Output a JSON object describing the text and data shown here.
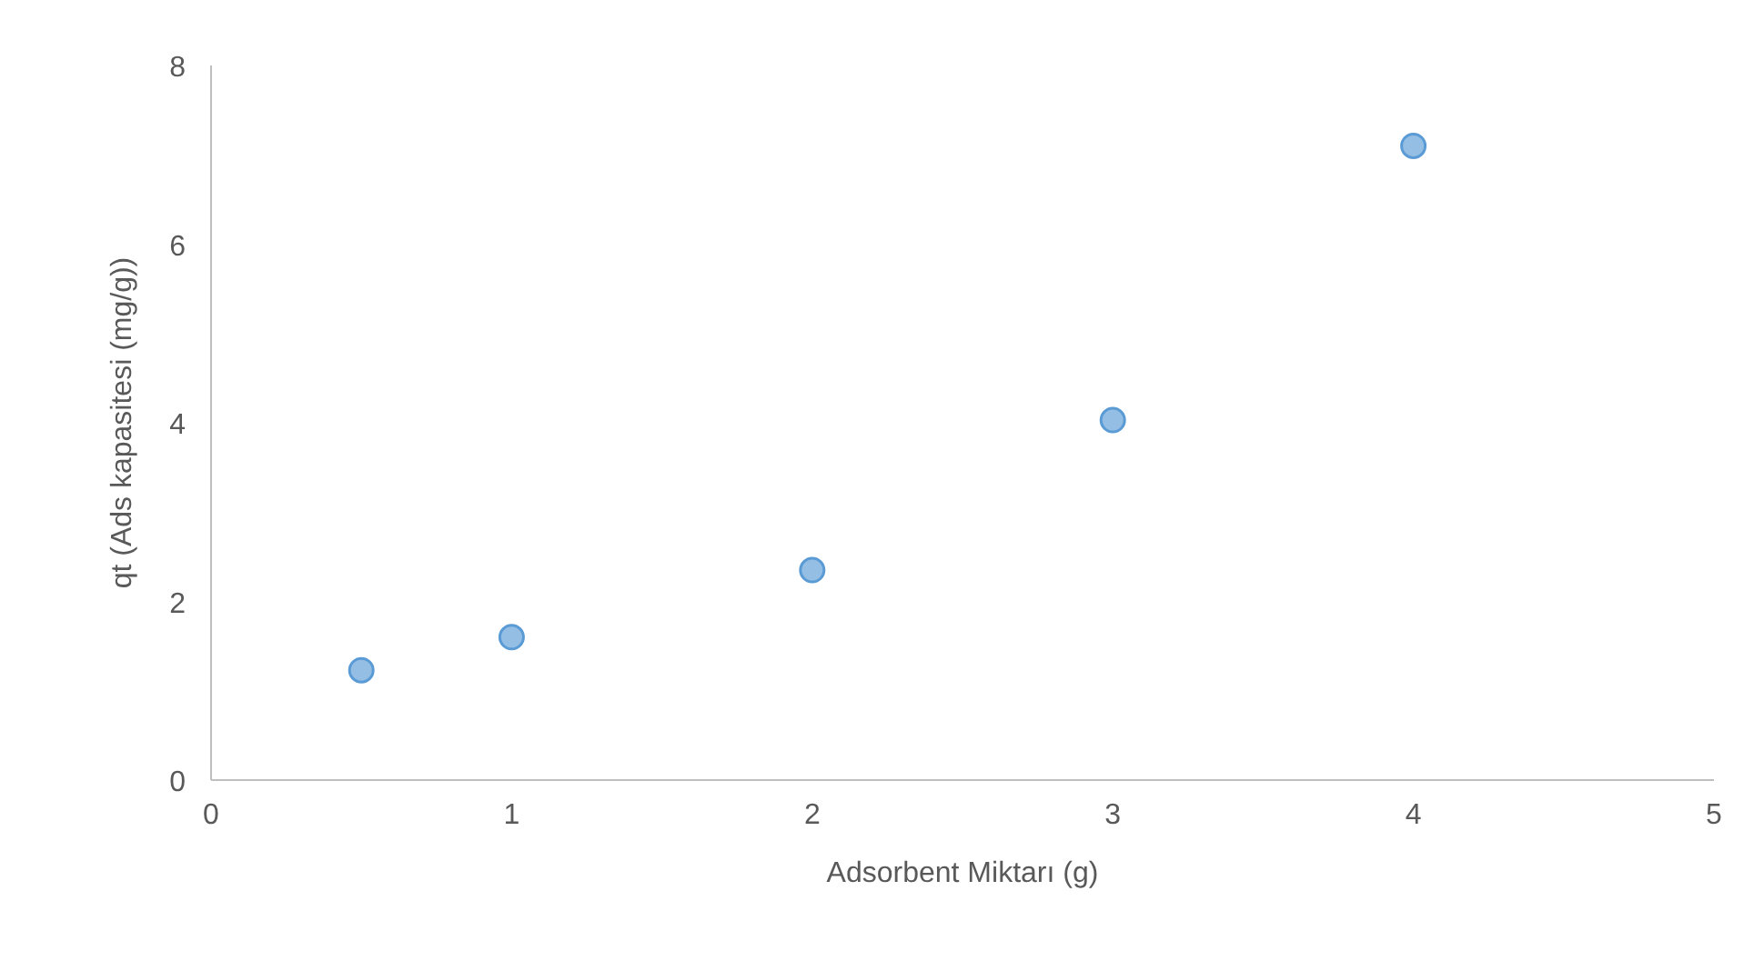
{
  "chart_data": {
    "type": "scatter",
    "xlabel": "Adsorbent Miktarı (g)",
    "ylabel": "qt (Ads kapasitesi (mg/g))",
    "x": [
      0.5,
      1,
      2,
      3,
      4
    ],
    "series": [
      {
        "color": "#5b9bd5",
        "values": [
          1.23,
          1.6,
          2.35,
          4.03,
          7.1
        ]
      }
    ],
    "xlim": [
      0,
      5
    ],
    "xticks": [
      0,
      1,
      2,
      3,
      4,
      5
    ],
    "ylim": [
      0,
      8
    ],
    "yticks": [
      0,
      2,
      4,
      6,
      8
    ],
    "grid": false,
    "marker": "circle"
  }
}
